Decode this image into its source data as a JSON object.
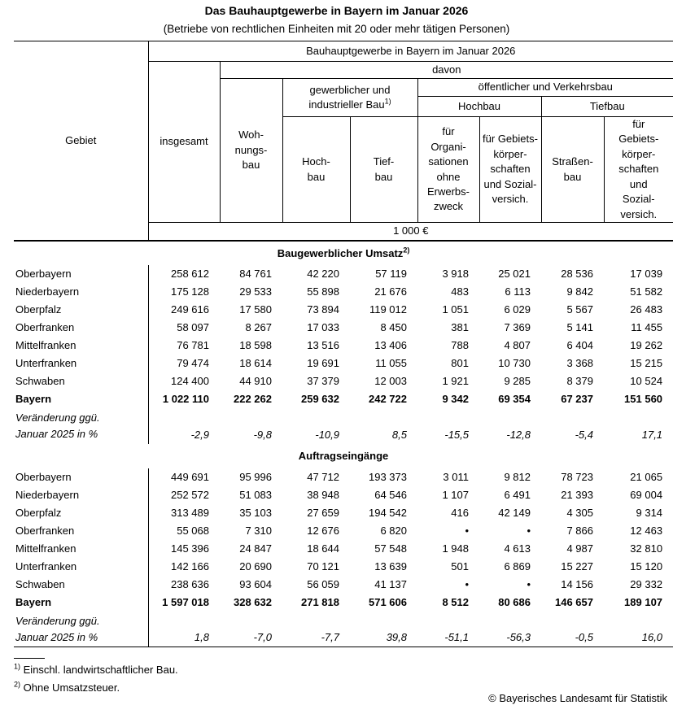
{
  "page": {
    "title": "Das Bauhauptgewerbe in Bayern im Januar 2026",
    "subtitle": "(Betriebe von rechtlichen Einheiten mit 20 oder mehr tätigen Personen)"
  },
  "table": {
    "header": {
      "gebiet": "Gebiet",
      "main_span": "Bauhauptgewerbe in Bayern im Januar 2026",
      "davon": "davon",
      "insgesamt": "insgesamt",
      "gewerblich_line1": "gewerblicher und",
      "gewerblich_line2": "industrieller Bau",
      "gewerblich_sup": "1)",
      "oeffentlich": "öffentlicher und Verkehrsbau",
      "hochbau_group": "Hochbau",
      "tiefbau_group": "Tiefbau",
      "col_wohnungsbau": "Woh-\nnungs-\nbau",
      "col_hochbau": "Hoch-\nbau",
      "col_tiefbau": "Tief-\nbau",
      "col_fuer_organisationen": "für\nOrgani-\nsationen\nohne\nErwerbs-\nzweck",
      "col_fuer_gebiets_hochbau": "für Gebiets-\nkörper-\nschaften\nund Sozial-\nversich.",
      "col_strassenbau": "Straßen-\nbau",
      "col_fuer_gebiets_tiefbau": "für\nGebiets-\nkörper-\nschaften\nund\nSozial-\nversich.",
      "units": "1 000 €"
    },
    "sections": [
      {
        "title": "Baugewerblicher Umsatz",
        "title_sup": "2)",
        "rows": [
          {
            "label": "Oberbayern",
            "bold": false,
            "values": [
              "258 612",
              "84 761",
              "42 220",
              "57 119",
              "3 918",
              "25 021",
              "28 536",
              "17 039"
            ]
          },
          {
            "label": "Niederbayern",
            "bold": false,
            "values": [
              "175 128",
              "29 533",
              "55 898",
              "21 676",
              "483",
              "6 113",
              "9 842",
              "51 582"
            ]
          },
          {
            "label": "Oberpfalz",
            "bold": false,
            "values": [
              "249 616",
              "17 580",
              "73 894",
              "119 012",
              "1 051",
              "6 029",
              "5 567",
              "26 483"
            ]
          },
          {
            "label": "Oberfranken",
            "bold": false,
            "values": [
              "58 097",
              "8 267",
              "17 033",
              "8 450",
              "381",
              "7 369",
              "5 141",
              "11 455"
            ]
          },
          {
            "label": "Mittelfranken",
            "bold": false,
            "values": [
              "76 781",
              "18 598",
              "13 516",
              "13 406",
              "788",
              "4 807",
              "6 404",
              "19 262"
            ]
          },
          {
            "label": "Unterfranken",
            "bold": false,
            "values": [
              "79 474",
              "18 614",
              "19 691",
              "11 055",
              "801",
              "10 730",
              "3 368",
              "15 215"
            ]
          },
          {
            "label": "Schwaben",
            "bold": false,
            "values": [
              "124 400",
              "44 910",
              "37 379",
              "12 003",
              "1 921",
              "9 285",
              "8 379",
              "10 524"
            ]
          },
          {
            "label": "Bayern",
            "bold": true,
            "values": [
              "1 022 110",
              "222 262",
              "259 632",
              "242 722",
              "9 342",
              "69 354",
              "67 237",
              "151 560"
            ]
          }
        ],
        "change_label_line1": "Veränderung ggü.",
        "change_label_line2": "Januar 2025 in %",
        "change_values": [
          "-2,9",
          "-9,8",
          "-10,9",
          "8,5",
          "-15,5",
          "-12,8",
          "-5,4",
          "17,1"
        ]
      },
      {
        "title": "Auftragseingänge",
        "title_sup": "",
        "rows": [
          {
            "label": "Oberbayern",
            "bold": false,
            "values": [
              "449 691",
              "95 996",
              "47 712",
              "193 373",
              "3 011",
              "9 812",
              "78 723",
              "21 065"
            ]
          },
          {
            "label": "Niederbayern",
            "bold": false,
            "values": [
              "252 572",
              "51 083",
              "38 948",
              "64 546",
              "1 107",
              "6 491",
              "21 393",
              "69 004"
            ]
          },
          {
            "label": "Oberpfalz",
            "bold": false,
            "values": [
              "313 489",
              "35 103",
              "27 659",
              "194 542",
              "416",
              "42 149",
              "4 305",
              "9 314"
            ]
          },
          {
            "label": "Oberfranken",
            "bold": false,
            "values": [
              "55 068",
              "7 310",
              "12 676",
              "6 820",
              "•",
              "•",
              "7 866",
              "12 463"
            ]
          },
          {
            "label": "Mittelfranken",
            "bold": false,
            "values": [
              "145 396",
              "24 847",
              "18 644",
              "57 548",
              "1 948",
              "4 613",
              "4 987",
              "32 810"
            ]
          },
          {
            "label": "Unterfranken",
            "bold": false,
            "values": [
              "142 166",
              "20 690",
              "70 121",
              "13 639",
              "501",
              "6 869",
              "15 227",
              "15 120"
            ]
          },
          {
            "label": "Schwaben",
            "bold": false,
            "values": [
              "238 636",
              "93 604",
              "56 059",
              "41 137",
              "•",
              "•",
              "14 156",
              "29 332"
            ]
          },
          {
            "label": "Bayern",
            "bold": true,
            "values": [
              "1 597 018",
              "328 632",
              "271 818",
              "571 606",
              "8 512",
              "80 686",
              "146 657",
              "189 107"
            ]
          }
        ],
        "change_label_line1": "Veränderung ggü.",
        "change_label_line2": "Januar 2025 in %",
        "change_values": [
          "1,8",
          "-7,0",
          "-7,7",
          "39,8",
          "-51,1",
          "-56,3",
          "-0,5",
          "16,0"
        ]
      }
    ]
  },
  "footnotes": [
    {
      "marker": "1)",
      "text": "Einschl. landwirtschaftlicher Bau."
    },
    {
      "marker": "2)",
      "text": "Ohne Umsatzsteuer."
    }
  ],
  "copyright": "© Bayerisches Landesamt für Statistik"
}
